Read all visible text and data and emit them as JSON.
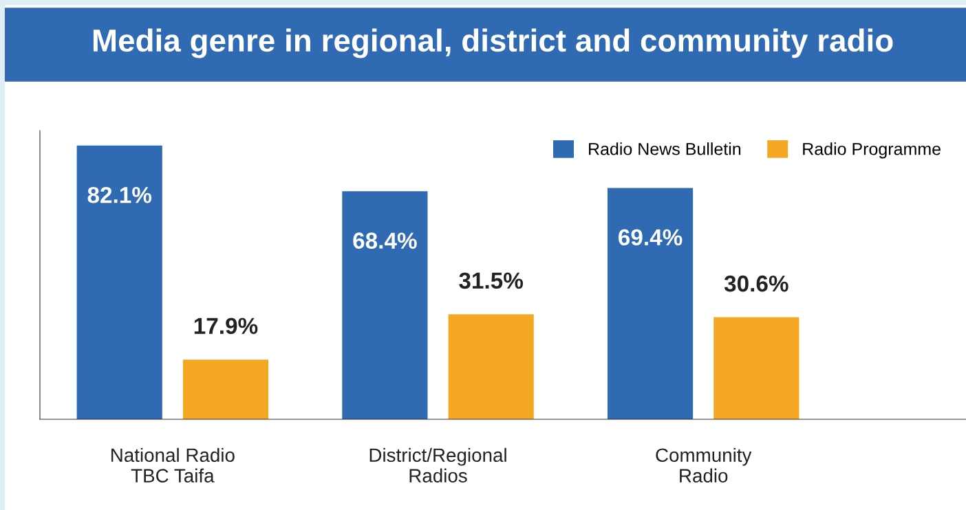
{
  "chart_data": {
    "type": "bar",
    "title": "Media genre in regional, district and community radio",
    "categories": [
      "National Radio\nTBC Taifa",
      "District/Regional\nRadios",
      "Community\nRadio"
    ],
    "series": [
      {
        "name": "Radio News Bulletin",
        "color": "#2f6ab3",
        "values": [
          82.1,
          68.4,
          69.4
        ],
        "value_labels": [
          "82.1%",
          "68.4%",
          "69.4%"
        ]
      },
      {
        "name": "Radio Programme",
        "color": "#f3a723",
        "values": [
          17.9,
          31.5,
          30.6
        ],
        "value_labels": [
          "17.9%",
          "31.5%",
          "30.6%"
        ]
      }
    ],
    "ylim": [
      0,
      86.6
    ],
    "tick_labels": "x",
    "grid": false,
    "legend": "top right"
  }
}
